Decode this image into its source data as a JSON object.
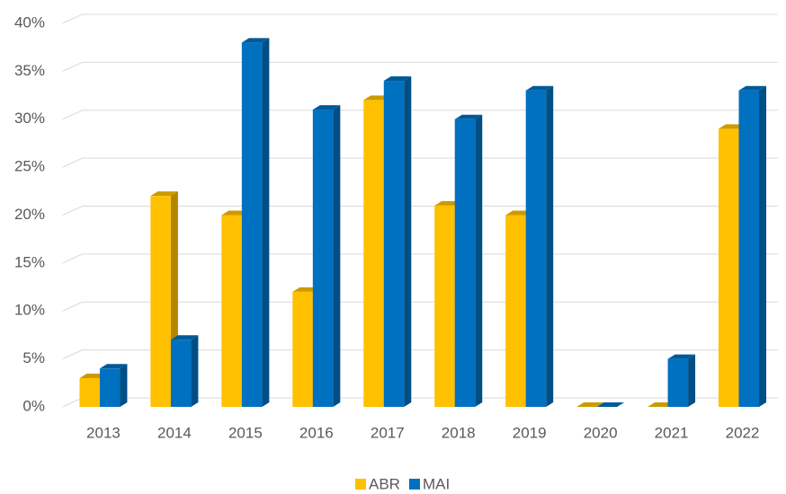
{
  "chart_data": {
    "type": "bar",
    "categories": [
      "2013",
      "2014",
      "2015",
      "2016",
      "2017",
      "2018",
      "2019",
      "2020",
      "2021",
      "2022"
    ],
    "series": [
      {
        "name": "ABR",
        "color": "#FFC000",
        "values": [
          3,
          22,
          20,
          12,
          32,
          21,
          20,
          0,
          0,
          29
        ]
      },
      {
        "name": "MAI",
        "color": "#0070C0",
        "values": [
          4,
          7,
          38,
          31,
          34,
          30,
          33,
          0,
          5,
          33
        ]
      }
    ],
    "ylim": [
      0,
      40
    ],
    "yticks": [
      {
        "value": 0,
        "label": "0%"
      },
      {
        "value": 5,
        "label": "5%"
      },
      {
        "value": 10,
        "label": "10%"
      },
      {
        "value": 15,
        "label": "15%"
      },
      {
        "value": 20,
        "label": "20%"
      },
      {
        "value": 25,
        "label": "25%"
      },
      {
        "value": 30,
        "label": "30%"
      },
      {
        "value": 35,
        "label": "35%"
      },
      {
        "value": 40,
        "label": "40%"
      }
    ],
    "grid": true,
    "legend": "bottom"
  }
}
